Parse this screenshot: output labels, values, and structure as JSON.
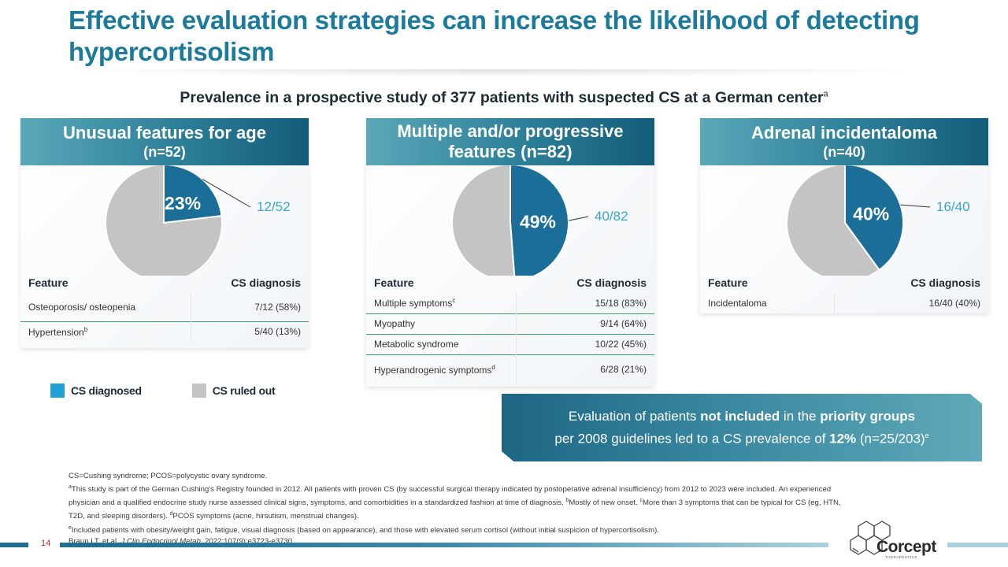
{
  "title": "Effective evaluation strategies can increase the likelihood of detecting hypercortisolism",
  "subtitle": {
    "text": "Prevalence in a prospective study of 377 patients with suspected CS at a German center",
    "sup": "a"
  },
  "colors": {
    "diagnosed": "#1a6e98",
    "ruled_out": "#c4c4c4",
    "fraction_label": "#3aa3c9",
    "legend_diagnosed": "#1f9fd4",
    "title": "#1c7a9c"
  },
  "panels": [
    {
      "header_line1": "Unusual features for age",
      "header_line2": "(n=52)",
      "pie_pct_label": "23%",
      "fraction_label": "12/52",
      "table_headers": {
        "feature": "Feature",
        "diagnosis": "CS diagnosis"
      },
      "rows": [
        {
          "feature": "Osteoporosis/ osteopenia",
          "sup": "",
          "value": "7/12 (58%)"
        },
        {
          "feature": "Hypertension",
          "sup": "b",
          "value": "5/40 (13%)"
        }
      ]
    },
    {
      "header_line1": "Multiple and/or progressive",
      "header_line2": "features (n=82)",
      "pie_pct_label": "49%",
      "fraction_label": "40/82",
      "table_headers": {
        "feature": "Feature",
        "diagnosis": "CS diagnosis"
      },
      "rows": [
        {
          "feature": "Multiple symptoms",
          "sup": "c",
          "value": "15/18 (83%)"
        },
        {
          "feature": "Myopathy",
          "sup": "",
          "value": "9/14 (64%)"
        },
        {
          "feature": "Metabolic syndrome",
          "sup": "",
          "value": "10/22 (45%)"
        },
        {
          "feature": "Hyperandrogenic symptoms",
          "sup": "d",
          "value": "6/28 (21%)"
        }
      ]
    },
    {
      "header_line1": "Adrenal incidentaloma",
      "header_line2": "(n=40)",
      "pie_pct_label": "40%",
      "fraction_label": "16/40",
      "table_headers": {
        "feature": "Feature",
        "diagnosis": "CS diagnosis"
      },
      "rows": [
        {
          "feature": "Incidentaloma",
          "sup": "",
          "value": "16/40 (40%)"
        }
      ]
    }
  ],
  "chart_data": [
    {
      "type": "pie",
      "title": "Unusual features for age (n=52)",
      "slices": [
        {
          "label": "CS diagnosed",
          "value": 12,
          "percent": 23
        },
        {
          "label": "CS ruled out",
          "value": 40,
          "percent": 77
        }
      ]
    },
    {
      "type": "pie",
      "title": "Multiple and/or progressive features (n=82)",
      "slices": [
        {
          "label": "CS diagnosed",
          "value": 40,
          "percent": 49
        },
        {
          "label": "CS ruled out",
          "value": 42,
          "percent": 51
        }
      ]
    },
    {
      "type": "pie",
      "title": "Adrenal incidentaloma (n=40)",
      "slices": [
        {
          "label": "CS diagnosed",
          "value": 16,
          "percent": 40
        },
        {
          "label": "CS ruled out",
          "value": 24,
          "percent": 60
        }
      ]
    }
  ],
  "legend": [
    {
      "label": "CS diagnosed",
      "color": "#1f9fd4"
    },
    {
      "label": "CS ruled out",
      "color": "#c4c4c4"
    }
  ],
  "callout": {
    "line1_a": "Evaluation of patients ",
    "line1_b": "not included",
    "line1_c": " in the ",
    "line1_d": "priority groups",
    "line2_a": "per 2008 guidelines led to a CS prevalence of ",
    "line2_b": "12%",
    "line2_c": " (n=25/203)",
    "line2_sup": "e"
  },
  "footnotes": {
    "abbrev": "CS=Cushing syndrome; PCOS=polycystic ovary syndrome.",
    "a_sup": "a",
    "a_text": "This study is part of the German Cushing's Registry founded in 2012. All patients with proven CS (by successful surgical therapy indicated by postoperative adrenal insufficiency) from 2012 to 2023 were included. An experienced physician and a qualified endocrine study nurse assessed clinical signs, symptoms, and comorbidities in a standardized fashion at time of diagnosis. ",
    "b_sup": "b",
    "b_text": "Mostly of new onset. ",
    "c_sup": "c",
    "c_text": "More than 3 symptoms that can be typical for CS (eg, HTN, T2D, and sleeping disorders). ",
    "d_sup": "d",
    "d_text": "PCOS symptoms (acne, hirsutism, menstrual changes).",
    "e_sup": "e",
    "e_text": "Included patients with obesity/weight gain, fatigue, visual diagnosis (based on appearance), and those with elevated serum cortisol (without initial suspicion of hypercortisolism).",
    "ref_a": "Braun LT, et al. ",
    "ref_journal": "J Clin Endocrinol Metab.",
    "ref_b": " 2022;107(9):e3723-e3730."
  },
  "page_number": "14",
  "logo": {
    "name": "Corcept",
    "sub": "THERAPEUTICS"
  }
}
